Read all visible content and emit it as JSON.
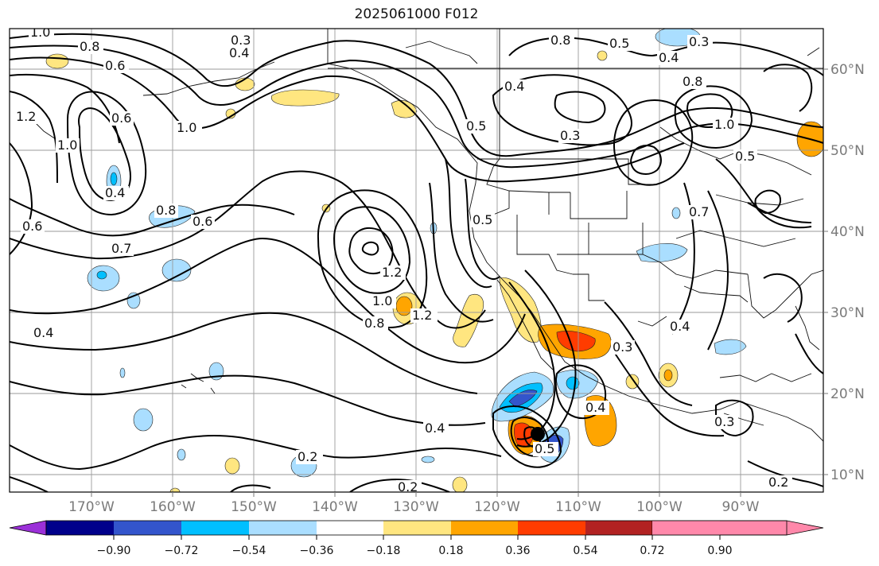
{
  "title": "2025061000 F012",
  "lon_labels": [
    "170°W",
    "160°W",
    "150°W",
    "140°W",
    "130°W",
    "120°W",
    "110°W",
    "100°W",
    "90°W"
  ],
  "lat_labels": [
    "60°N",
    "50°N",
    "40°N",
    "30°N",
    "20°N",
    "10°N"
  ],
  "colorbar": {
    "colors": [
      "#9b30d8",
      "#00008b",
      "#3355cc",
      "#00bfff",
      "#aadeff",
      "#ffffff",
      "#ffe680",
      "#ffa500",
      "#ff3c00",
      "#b22222",
      "#ff88aa"
    ],
    "tick_labels": [
      "−0.90",
      "−0.72",
      "−0.54",
      "−0.36",
      "−0.18",
      "0.18",
      "0.36",
      "0.54",
      "0.72",
      "0.90"
    ]
  },
  "contour_labels": [
    "1.0",
    "0.8",
    "0.6",
    "0.3",
    "0.4",
    "0.8",
    "0.5",
    "0.4",
    "0.3",
    "1.2",
    "1.0",
    "0.6",
    "0.4",
    "1.0",
    "0.4",
    "0.5",
    "0.3",
    "0.8",
    "1.0",
    "0.8",
    "0.6",
    "0.6",
    "0.7",
    "1.2",
    "1.0",
    "1.2",
    "0.8",
    "0.5",
    "0.4",
    "0.4",
    "0.4",
    "0.2",
    "0.5",
    "0.4",
    "0.3",
    "0.3",
    "0.5",
    "0.2",
    "0.7",
    "0.2"
  ]
}
